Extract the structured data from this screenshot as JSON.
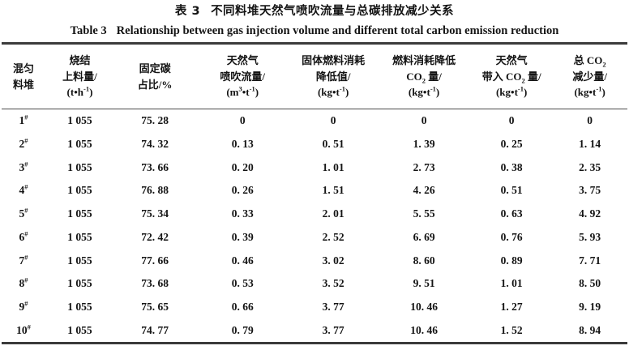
{
  "title_zh": {
    "label": "表 3",
    "text": "不同料堆天然气喷吹流量与总碳排放减少关系"
  },
  "title_en": {
    "label": "Table 3",
    "text": "Relationship between gas injection volume and different total carbon emission reduction"
  },
  "table": {
    "columns": [
      {
        "id": "pile",
        "width": 7,
        "lines": [
          "混匀",
          "料堆"
        ]
      },
      {
        "id": "sinter-feed",
        "width": 11,
        "lines": [
          "烧结",
          "上料量/",
          "(t•h^-1^)"
        ]
      },
      {
        "id": "fixed-carbon",
        "width": 13,
        "lines": [
          "固定碳",
          "占比/%"
        ]
      },
      {
        "id": "gas-injection",
        "width": 15,
        "lines": [
          "天然气",
          "喷吹流量/",
          "(m^3^•t^-1^)"
        ]
      },
      {
        "id": "solid-fuel-reduction",
        "width": 14,
        "lines": [
          "固体燃料消耗",
          "降低值/",
          "(kg•t^-1^)"
        ]
      },
      {
        "id": "fuel-co2-reduction",
        "width": 15,
        "lines": [
          "燃料消耗降低",
          "CO~2~ 量/",
          "(kg•t^-1^)"
        ]
      },
      {
        "id": "gas-brought-co2",
        "width": 13,
        "lines": [
          "天然气",
          "带入 CO~2~ 量/",
          "(kg•t^-1^)"
        ]
      },
      {
        "id": "total-co2-reduction",
        "width": 12,
        "lines": [
          "总 CO~2~",
          "减少量/",
          "(kg•t^-1^)"
        ]
      }
    ],
    "rows": [
      [
        "1^#^",
        "1 055",
        "75. 28",
        "0",
        "0",
        "0",
        "0",
        "0"
      ],
      [
        "2^#^",
        "1 055",
        "74. 32",
        "0. 13",
        "0. 51",
        "1. 39",
        "0. 25",
        "1. 14"
      ],
      [
        "3^#^",
        "1 055",
        "73. 66",
        "0. 20",
        "1. 01",
        "2. 73",
        "0. 38",
        "2. 35"
      ],
      [
        "4^#^",
        "1 055",
        "76. 88",
        "0. 26",
        "1. 51",
        "4. 26",
        "0. 51",
        "3. 75"
      ],
      [
        "5^#^",
        "1 055",
        "75. 34",
        "0. 33",
        "2. 01",
        "5. 55",
        "0. 63",
        "4. 92"
      ],
      [
        "6^#^",
        "1 055",
        "72. 42",
        "0. 39",
        "2. 52",
        "6. 69",
        "0. 76",
        "5. 93"
      ],
      [
        "7^#^",
        "1 055",
        "77. 66",
        "0. 46",
        "3. 02",
        "8. 60",
        "0. 89",
        "7. 71"
      ],
      [
        "8^#^",
        "1 055",
        "73. 68",
        "0. 53",
        "3. 52",
        "9. 51",
        "1. 01",
        "8. 50"
      ],
      [
        "9^#^",
        "1 055",
        "75. 65",
        "0. 66",
        "3. 77",
        "10. 46",
        "1. 27",
        "9. 19"
      ],
      [
        "10^#^",
        "1 055",
        "74. 77",
        "0. 79",
        "3. 77",
        "10. 46",
        "1. 52",
        "8. 94"
      ]
    ]
  },
  "colors": {
    "text": "#141414",
    "rule_heavy": "#3b3b3b",
    "rule_light": "#4a4a4a",
    "background": "#ffffff"
  }
}
